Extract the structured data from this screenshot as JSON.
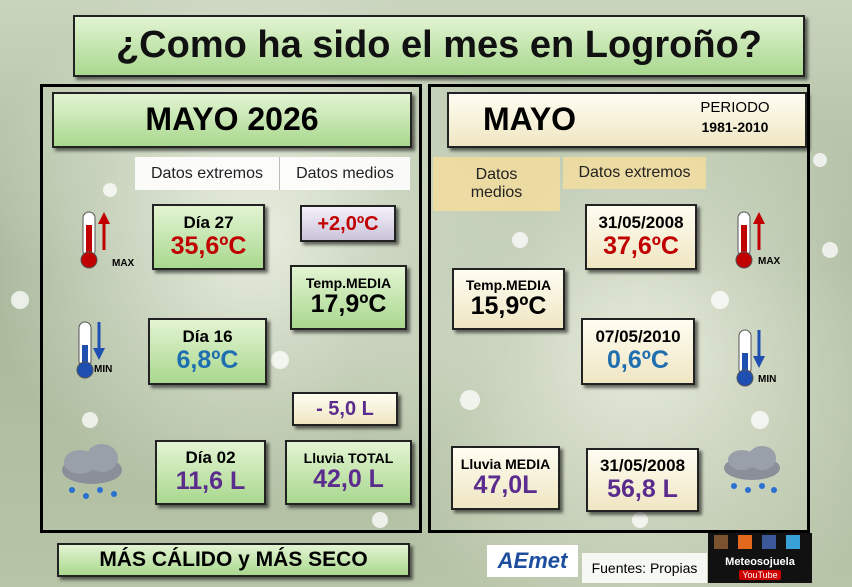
{
  "title": "¿Como ha sido el mes en Logroño?",
  "month": {
    "header": "MAYO 2026",
    "tabs": [
      "Datos extremos",
      "Datos medios"
    ],
    "max": {
      "day": "Día 27",
      "value": "35,6ºC"
    },
    "min": {
      "day": "Día 16",
      "value": "6,8ºC"
    },
    "temp_anomaly": "+2,0ºC",
    "temp_mean": {
      "label": "Temp.MEDIA",
      "value": "17,9ºC"
    },
    "rain_anomaly": "- 5,0 L",
    "rain_max": {
      "day": "Día 02",
      "value": "11,6 L"
    },
    "rain_total": {
      "label": "Lluvia TOTAL",
      "value": "42,0 L"
    }
  },
  "climate": {
    "header": "MAYO",
    "period_label": "PERIODO",
    "period": "1981-2010",
    "tabs": [
      "Datos medios",
      "Datos extremos"
    ],
    "max": {
      "date": "31/05/2008",
      "value": "37,6ºC"
    },
    "temp_mean": {
      "label": "Temp.MEDIA",
      "value": "15,9ºC"
    },
    "min": {
      "date": "07/05/2010",
      "value": "0,6ºC"
    },
    "rain_mean": {
      "label": "Lluvia MEDIA",
      "value": "47,0L"
    },
    "rain_max": {
      "date": "31/05/2008",
      "value": "56,8 L"
    }
  },
  "icons": {
    "max": "MAX",
    "min": "MIN"
  },
  "footer": {
    "summary": "MÁS CÁLIDO y MÁS SECO",
    "aemet": "AEmet",
    "sources": "Fuentes: Propias",
    "brand": "Meteosojuela",
    "youtube": "YouTube"
  }
}
